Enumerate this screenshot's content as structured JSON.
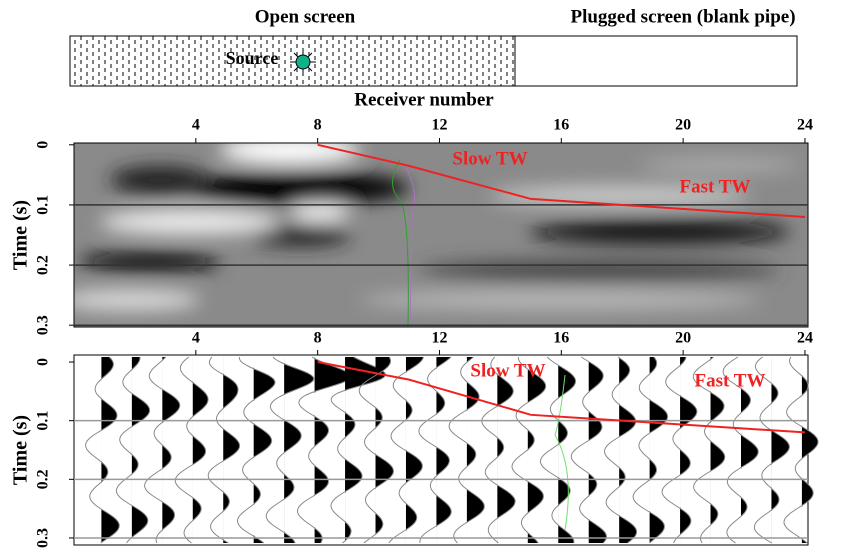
{
  "schematic": {
    "left_label": "Open screen",
    "right_label": "Plugged screen (blank pipe)",
    "source_label": "Source"
  },
  "chart_data": [
    {
      "type": "line",
      "x_label": "Receiver number",
      "y_label": "Time (s)",
      "xlim": [
        0,
        24.1
      ],
      "ylim": [
        -0.003,
        0.303
      ],
      "xticks": [
        4,
        8,
        12,
        16,
        20,
        24
      ],
      "yticks": [
        0,
        0.1,
        0.2,
        0.3
      ],
      "grid": true,
      "x": [
        8,
        11,
        15,
        24
      ],
      "values": [
        0,
        0.035,
        0.09,
        0.12
      ],
      "color": "#ee2222",
      "annotations": [
        "Slow TW",
        "Fast TW"
      ]
    },
    {
      "type": "line",
      "y_label": "Time (s)",
      "xlim": [
        0,
        24.1
      ],
      "ylim": [
        -0.012,
        0.312
      ],
      "xticks": [
        4,
        8,
        12,
        16,
        20,
        24
      ],
      "yticks": [
        0,
        0.1,
        0.2,
        0.3
      ],
      "grid": true,
      "x": [
        8,
        11,
        15,
        24
      ],
      "values": [
        0,
        0.03,
        0.09,
        0.12
      ],
      "color": "#ee2222",
      "annotations": [
        "Slow TW",
        "Fast TW"
      ]
    }
  ]
}
